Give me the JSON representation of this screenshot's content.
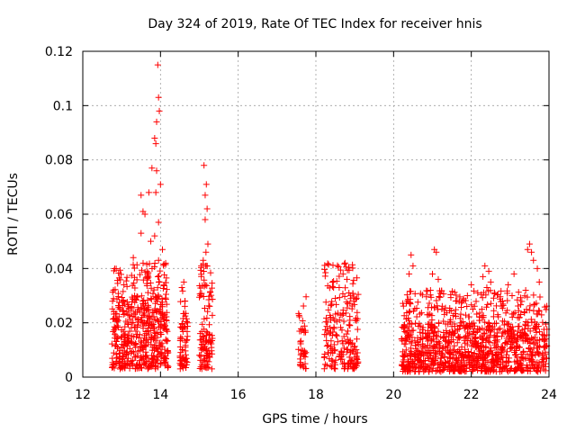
{
  "chart_data": {
    "type": "scatter",
    "title": "Day 324 of 2019, Rate Of TEC Index for receiver hnis",
    "xlabel": "GPS time / hours",
    "ylabel": "ROTI / TECUs",
    "xlim": [
      12,
      24
    ],
    "ylim": [
      0,
      0.12
    ],
    "xticks": [
      12,
      14,
      16,
      18,
      20,
      22,
      24
    ],
    "xtick_labels": [
      "12",
      "14",
      "16",
      "18",
      "20",
      "22",
      "24"
    ],
    "yticks": [
      0,
      0.02,
      0.04,
      0.06,
      0.08,
      0.1,
      0.12
    ],
    "ytick_labels": [
      "0",
      "0.02",
      "0.04",
      "0.06",
      "0.08",
      "0.1",
      "0.12"
    ],
    "grid": true,
    "marker": "+",
    "marker_color": "#ff0000",
    "clusters": [
      {
        "x_start": 12.75,
        "x_end": 14.2,
        "base_low": 0.003,
        "base_high": 0.03,
        "count": 520
      },
      {
        "x_start": 14.5,
        "x_end": 14.7,
        "base_low": 0.003,
        "base_high": 0.02,
        "count": 70
      },
      {
        "x_start": 15.0,
        "x_end": 15.35,
        "base_low": 0.003,
        "base_high": 0.03,
        "count": 110
      },
      {
        "x_start": 17.55,
        "x_end": 17.75,
        "base_low": 0.003,
        "base_high": 0.018,
        "count": 40
      },
      {
        "x_start": 18.2,
        "x_end": 19.1,
        "base_low": 0.003,
        "base_high": 0.03,
        "count": 200
      },
      {
        "x_start": 20.2,
        "x_end": 23.95,
        "base_low": 0.002,
        "base_high": 0.02,
        "count": 1100
      }
    ],
    "peaks": [
      {
        "x": 13.93,
        "y": 0.115
      },
      {
        "x": 13.95,
        "y": 0.103
      },
      {
        "x": 13.97,
        "y": 0.098
      },
      {
        "x": 13.9,
        "y": 0.094
      },
      {
        "x": 13.85,
        "y": 0.088
      },
      {
        "x": 13.88,
        "y": 0.086
      },
      {
        "x": 13.78,
        "y": 0.077
      },
      {
        "x": 13.9,
        "y": 0.076
      },
      {
        "x": 14.0,
        "y": 0.071
      },
      {
        "x": 13.88,
        "y": 0.068
      },
      {
        "x": 13.5,
        "y": 0.067
      },
      {
        "x": 13.7,
        "y": 0.068
      },
      {
        "x": 13.55,
        "y": 0.061
      },
      {
        "x": 13.6,
        "y": 0.06
      },
      {
        "x": 13.95,
        "y": 0.057
      },
      {
        "x": 13.5,
        "y": 0.053
      },
      {
        "x": 13.85,
        "y": 0.052
      },
      {
        "x": 13.75,
        "y": 0.05
      },
      {
        "x": 14.05,
        "y": 0.047
      },
      {
        "x": 13.3,
        "y": 0.044
      },
      {
        "x": 13.95,
        "y": 0.043
      },
      {
        "x": 14.6,
        "y": 0.035
      },
      {
        "x": 14.55,
        "y": 0.033
      },
      {
        "x": 15.12,
        "y": 0.078
      },
      {
        "x": 15.18,
        "y": 0.071
      },
      {
        "x": 15.15,
        "y": 0.067
      },
      {
        "x": 15.2,
        "y": 0.062
      },
      {
        "x": 15.15,
        "y": 0.058
      },
      {
        "x": 15.22,
        "y": 0.049
      },
      {
        "x": 15.17,
        "y": 0.046
      },
      {
        "x": 15.1,
        "y": 0.043
      },
      {
        "x": 15.05,
        "y": 0.041
      },
      {
        "x": 18.75,
        "y": 0.042
      },
      {
        "x": 18.7,
        "y": 0.038
      },
      {
        "x": 18.8,
        "y": 0.036
      },
      {
        "x": 18.6,
        "y": 0.033
      },
      {
        "x": 18.85,
        "y": 0.031
      },
      {
        "x": 18.5,
        "y": 0.029
      },
      {
        "x": 20.45,
        "y": 0.045
      },
      {
        "x": 20.5,
        "y": 0.041
      },
      {
        "x": 20.4,
        "y": 0.038
      },
      {
        "x": 21.05,
        "y": 0.047
      },
      {
        "x": 21.1,
        "y": 0.046
      },
      {
        "x": 21.0,
        "y": 0.038
      },
      {
        "x": 21.15,
        "y": 0.036
      },
      {
        "x": 20.95,
        "y": 0.032
      },
      {
        "x": 22.35,
        "y": 0.041
      },
      {
        "x": 22.45,
        "y": 0.039
      },
      {
        "x": 22.3,
        "y": 0.037
      },
      {
        "x": 22.5,
        "y": 0.035
      },
      {
        "x": 22.4,
        "y": 0.033
      },
      {
        "x": 22.0,
        "y": 0.034
      },
      {
        "x": 22.95,
        "y": 0.034
      },
      {
        "x": 23.1,
        "y": 0.038
      },
      {
        "x": 23.05,
        "y": 0.03
      },
      {
        "x": 23.5,
        "y": 0.049
      },
      {
        "x": 23.45,
        "y": 0.047
      },
      {
        "x": 23.55,
        "y": 0.046
      },
      {
        "x": 23.6,
        "y": 0.043
      },
      {
        "x": 23.7,
        "y": 0.04
      },
      {
        "x": 23.75,
        "y": 0.035
      },
      {
        "x": 23.4,
        "y": 0.032
      },
      {
        "x": 21.6,
        "y": 0.028
      },
      {
        "x": 21.9,
        "y": 0.03
      }
    ]
  }
}
